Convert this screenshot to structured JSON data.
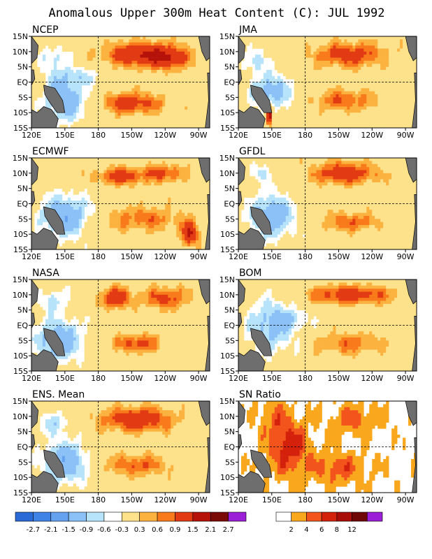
{
  "figure": {
    "title": "Anomalous Upper 300m Heat Content (C): JUL 1992"
  },
  "palettes": {
    "anomaly": [
      "#2a6ad6",
      "#3f83e6",
      "#64a2f0",
      "#8cc1f7",
      "#b7e3fb",
      "#ffffff",
      "#fde28b",
      "#fcb23e",
      "#f97a1b",
      "#e23a12",
      "#b5120a",
      "#7a0a06",
      "#9b1fd6"
    ],
    "sn": [
      "#ffffff",
      "#f9a71c",
      "#f2541c",
      "#d4210c",
      "#a80d08",
      "#6e0706",
      "#9b1fd6"
    ],
    "land": "#6e6e6e"
  },
  "chart_data": [
    {
      "type": "heatmap",
      "title": "NCEP",
      "x_tick_labels": [
        "120E",
        "150E",
        "180",
        "150W",
        "120W",
        "90W"
      ],
      "y_tick_labels": [
        "15N",
        "10N",
        "5N",
        "EQ",
        "5S",
        "10S",
        "15S"
      ],
      "xlim": [
        120,
        280
      ],
      "ylim": [
        -15,
        15
      ],
      "features": [
        {
          "lon": 215,
          "lat": 9,
          "slon": 30,
          "slat": 4,
          "amp": 1.5
        },
        {
          "lon": 245,
          "lat": 8,
          "slon": 18,
          "slat": 4,
          "amp": 1.1
        },
        {
          "lon": 210,
          "lat": -7,
          "slon": 28,
          "slat": 3.5,
          "amp": 1.2
        },
        {
          "lon": 150,
          "lat": -6,
          "slon": 18,
          "slat": 7,
          "amp": -1.4
        },
        {
          "lon": 140,
          "lat": 8,
          "slon": 14,
          "slat": 4,
          "amp": -0.7
        },
        {
          "lon": 160,
          "lat": 2,
          "slon": 25,
          "slat": 3,
          "amp": -0.6
        }
      ]
    },
    {
      "type": "heatmap",
      "title": "JMA",
      "x_tick_labels": [
        "120E",
        "150E",
        "180",
        "150W",
        "120W",
        "90W"
      ],
      "y_tick_labels": [
        "15N",
        "10N",
        "5N",
        "EQ",
        "5S",
        "10S",
        "15S"
      ],
      "xlim": [
        120,
        280
      ],
      "ylim": [
        -15,
        15
      ],
      "features": [
        {
          "lon": 220,
          "lat": 9,
          "slon": 32,
          "slat": 4,
          "amp": 1.2
        },
        {
          "lon": 215,
          "lat": -6,
          "slon": 28,
          "slat": 3.5,
          "amp": 0.9
        },
        {
          "lon": 148,
          "lat": -11,
          "slon": 3,
          "slat": 3,
          "amp": 2.2
        },
        {
          "lon": 150,
          "lat": -3,
          "slon": 18,
          "slat": 6,
          "amp": -1.2
        },
        {
          "lon": 135,
          "lat": 7,
          "slon": 10,
          "slat": 4,
          "amp": -0.8
        }
      ]
    },
    {
      "type": "heatmap",
      "title": "ECMWF",
      "x_tick_labels": [
        "120E",
        "150E",
        "180",
        "150W",
        "120W",
        "90W"
      ],
      "y_tick_labels": [
        "15N",
        "10N",
        "5N",
        "EQ",
        "5S",
        "10S",
        "15S"
      ],
      "xlim": [
        120,
        280
      ],
      "ylim": [
        -15,
        15
      ],
      "features": [
        {
          "lon": 200,
          "lat": 9,
          "slon": 22,
          "slat": 3,
          "amp": 1.2
        },
        {
          "lon": 240,
          "lat": 10,
          "slon": 18,
          "slat": 3,
          "amp": 1.0
        },
        {
          "lon": 220,
          "lat": -5,
          "slon": 35,
          "slat": 4,
          "amp": 0.8
        },
        {
          "lon": 262,
          "lat": -10,
          "slon": 8,
          "slat": 4,
          "amp": 1.5
        },
        {
          "lon": 150,
          "lat": -4,
          "slon": 22,
          "slat": 7,
          "amp": -1.4
        }
      ]
    },
    {
      "type": "heatmap",
      "title": "GFDL",
      "x_tick_labels": [
        "120E",
        "150E",
        "180",
        "150W",
        "120W",
        "90W"
      ],
      "y_tick_labels": [
        "15N",
        "10N",
        "5N",
        "EQ",
        "5S",
        "10S",
        "15S"
      ],
      "xlim": [
        120,
        280
      ],
      "ylim": [
        -15,
        15
      ],
      "features": [
        {
          "lon": 215,
          "lat": 10,
          "slon": 30,
          "slat": 3.5,
          "amp": 1.3
        },
        {
          "lon": 220,
          "lat": -6,
          "slon": 25,
          "slat": 3,
          "amp": 0.9
        },
        {
          "lon": 150,
          "lat": -4,
          "slon": 20,
          "slat": 7,
          "amp": -1.4
        },
        {
          "lon": 140,
          "lat": 10,
          "slon": 10,
          "slat": 3,
          "amp": -0.7
        }
      ]
    },
    {
      "type": "heatmap",
      "title": "NASA",
      "x_tick_labels": [
        "120E",
        "150E",
        "180",
        "150W",
        "120W",
        "90W"
      ],
      "y_tick_labels": [
        "15N",
        "10N",
        "5N",
        "EQ",
        "5S",
        "10S",
        "15S"
      ],
      "xlim": [
        120,
        280
      ],
      "ylim": [
        -15,
        15
      ],
      "features": [
        {
          "lon": 195,
          "lat": 9,
          "slon": 14,
          "slat": 3.5,
          "amp": 1.3
        },
        {
          "lon": 240,
          "lat": 9,
          "slon": 20,
          "slat": 3.5,
          "amp": 1.1
        },
        {
          "lon": 215,
          "lat": -6,
          "slon": 20,
          "slat": 3,
          "amp": 1.1
        },
        {
          "lon": 145,
          "lat": -5,
          "slon": 22,
          "slat": 7,
          "amp": -1.3
        },
        {
          "lon": 140,
          "lat": 8,
          "slon": 14,
          "slat": 4,
          "amp": -0.7
        }
      ]
    },
    {
      "type": "heatmap",
      "title": "BOM",
      "x_tick_labels": [
        "120E",
        "150E",
        "180",
        "150W",
        "120W",
        "90W"
      ],
      "y_tick_labels": [
        "15N",
        "10N",
        "5N",
        "EQ",
        "5S",
        "10S",
        "15S"
      ],
      "xlim": [
        120,
        280
      ],
      "ylim": [
        -15,
        15
      ],
      "features": [
        {
          "lon": 220,
          "lat": 10,
          "slon": 38,
          "slat": 3,
          "amp": 1.3
        },
        {
          "lon": 220,
          "lat": -6,
          "slon": 32,
          "slat": 3.5,
          "amp": 0.8
        },
        {
          "lon": 150,
          "lat": 0,
          "slon": 22,
          "slat": 9,
          "amp": -1.1
        },
        {
          "lon": 170,
          "lat": 2,
          "slon": 15,
          "slat": 3,
          "amp": -0.5
        }
      ]
    },
    {
      "type": "heatmap",
      "title": "ENS. Mean",
      "x_tick_labels": [
        "120E",
        "150E",
        "180",
        "150W",
        "120W",
        "90W"
      ],
      "y_tick_labels": [
        "15N",
        "10N",
        "5N",
        "EQ",
        "5S",
        "10S",
        "15S"
      ],
      "xlim": [
        120,
        280
      ],
      "ylim": [
        -15,
        15
      ],
      "features": [
        {
          "lon": 215,
          "lat": 9,
          "slon": 32,
          "slat": 4,
          "amp": 1.4
        },
        {
          "lon": 215,
          "lat": -6,
          "slon": 28,
          "slat": 3.5,
          "amp": 0.9
        },
        {
          "lon": 150,
          "lat": -5,
          "slon": 20,
          "slat": 7,
          "amp": -1.4
        },
        {
          "lon": 140,
          "lat": 8,
          "slon": 14,
          "slat": 4,
          "amp": -0.7
        }
      ]
    },
    {
      "type": "heatmap",
      "title": "SN Ratio",
      "x_tick_labels": [
        "120E",
        "150E",
        "180",
        "150W",
        "120W",
        "90W"
      ],
      "y_tick_labels": [
        "15N",
        "10N",
        "5N",
        "EQ",
        "5S",
        "10S",
        "15S"
      ],
      "xlim": [
        120,
        280
      ],
      "ylim": [
        -15,
        15
      ],
      "features": [
        {
          "lon": 165,
          "lat": 0,
          "slon": 18,
          "slat": 9,
          "amp": 6
        },
        {
          "lon": 210,
          "lat": -7,
          "slon": 25,
          "slat": 5,
          "amp": 4
        },
        {
          "lon": 225,
          "lat": 9,
          "slon": 22,
          "slat": 5,
          "amp": 3.5
        },
        {
          "lon": 150,
          "lat": 10,
          "slon": 12,
          "slat": 5,
          "amp": 3
        }
      ]
    }
  ],
  "colorbars": {
    "anomaly": {
      "labels": [
        "-2.7",
        "-2.1",
        "-1.5",
        "-0.9",
        "-0.6",
        "-0.3",
        "0.3",
        "0.6",
        "0.9",
        "1.5",
        "2.1",
        "2.7"
      ]
    },
    "sn": {
      "labels": [
        "2",
        "4",
        "6",
        "8",
        "12"
      ]
    }
  }
}
